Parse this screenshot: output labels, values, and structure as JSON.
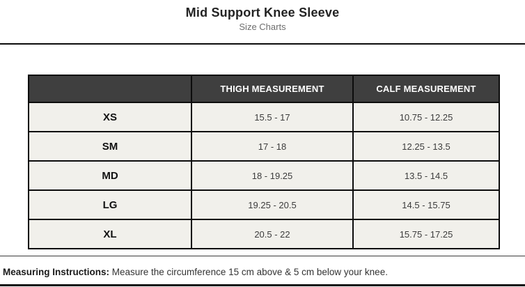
{
  "page": {
    "title": "Mid Support Knee Sleeve",
    "subtitle": "Size Charts"
  },
  "table": {
    "columns": {
      "size": "",
      "thigh": "THIGH MEASUREMENT",
      "calf": "CALF MEASUREMENT"
    },
    "rows": [
      {
        "size": "XS",
        "thigh": "15.5 - 17",
        "calf": "10.75 - 12.25"
      },
      {
        "size": "SM",
        "thigh": "17 - 18",
        "calf": "12.25 - 13.5"
      },
      {
        "size": "MD",
        "thigh": "18 - 19.25",
        "calf": "13.5 - 14.5"
      },
      {
        "size": "LG",
        "thigh": "19.25 - 20.5",
        "calf": "14.5 - 15.75"
      },
      {
        "size": "XL",
        "thigh": "20.5 - 22",
        "calf": "15.75 - 17.25"
      }
    ]
  },
  "footer": {
    "instructions_label": "Measuring Instructions:",
    "instructions_text": " Measure the circumference 15 cm above & 5 cm below your knee."
  },
  "colors": {
    "header_bg": "#3f3f3f",
    "header_text": "#ffffff",
    "cell_bg": "#f1f0eb",
    "border": "#0c0c0c",
    "subtitle_text": "#6e6e6e"
  }
}
